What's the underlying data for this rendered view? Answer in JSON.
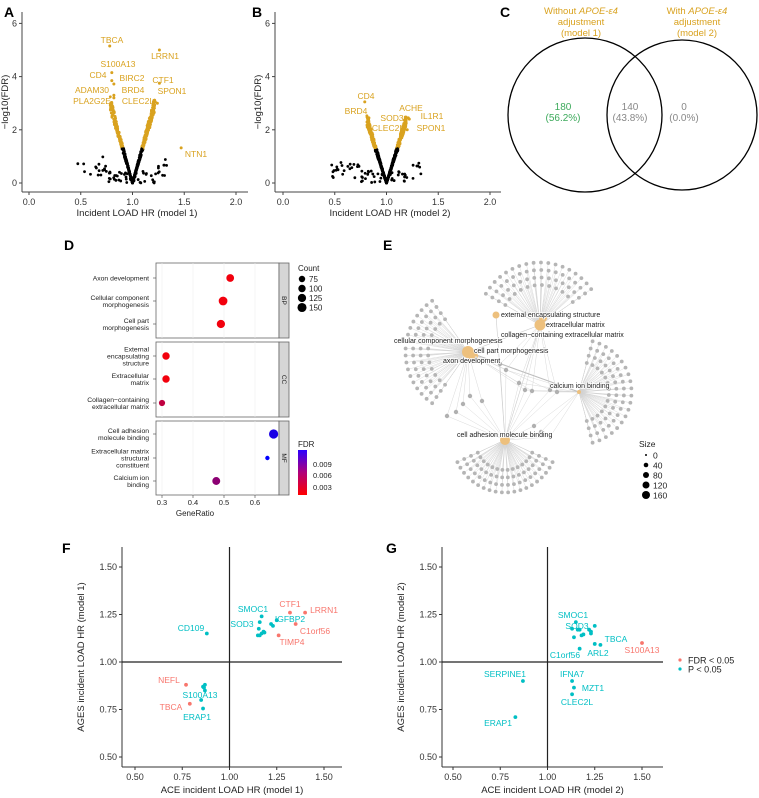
{
  "panels": {
    "a": "A",
    "b": "B",
    "c": "C",
    "d": "D",
    "e": "E",
    "f": "F",
    "g": "G"
  },
  "colors": {
    "significant": "#D9A21F",
    "nonsignificant": "#000000",
    "fdr": "#F8766D",
    "p": "#00BFC4",
    "venn_unique": "#3DAA5C",
    "venn_other": "#888888"
  },
  "chart_data": [
    {
      "id": "volcano_model1",
      "type": "scatter",
      "xlabel": "Incident LOAD HR (model 1)",
      "ylabel": "−log10(FDR)",
      "xlim": [
        0,
        2
      ],
      "ylim": [
        0,
        6
      ],
      "xticks": [
        "0.0",
        "0.5",
        "1.0",
        "1.5",
        "2.0"
      ],
      "yticks": [
        "0",
        "2",
        "4",
        "6"
      ],
      "labeled_points": [
        {
          "gene": "TBCA",
          "hr": 0.78,
          "y": 5.15
        },
        {
          "gene": "LRRN1",
          "hr": 1.26,
          "y": 5.0
        },
        {
          "gene": "S100A13",
          "hr": 0.8,
          "y": 4.15
        },
        {
          "gene": "CD4",
          "hr": 0.8,
          "y": 3.85
        },
        {
          "gene": "BIRC2",
          "hr": 0.82,
          "y": 3.72
        },
        {
          "gene": "CTF1",
          "hr": 1.26,
          "y": 3.75
        },
        {
          "gene": "ADAM30",
          "hr": 0.82,
          "y": 3.3
        },
        {
          "gene": "BRD4",
          "hr": 0.82,
          "y": 3.2
        },
        {
          "gene": "SPON1",
          "hr": 1.24,
          "y": 3.0
        },
        {
          "gene": "PLA2G2E",
          "hr": 0.81,
          "y": 2.85
        },
        {
          "gene": "CLEC2L",
          "hr": 1.22,
          "y": 3.05
        },
        {
          "gene": "NTN1",
          "hr": 1.47,
          "y": 1.32
        }
      ],
      "significance_threshold": 1.3
    },
    {
      "id": "volcano_model2",
      "type": "scatter",
      "xlabel": "Incident LOAD HR (model 2)",
      "ylabel": "−log10(FDR)",
      "xlim": [
        0,
        2
      ],
      "ylim": [
        0,
        6
      ],
      "xticks": [
        "0.0",
        "0.5",
        "1.0",
        "1.5",
        "2.0"
      ],
      "yticks": [
        "0",
        "2",
        "4",
        "6"
      ],
      "labeled_points": [
        {
          "gene": "CD4",
          "hr": 0.79,
          "y": 3.05
        },
        {
          "gene": "BRD4",
          "hr": 0.83,
          "y": 2.45
        },
        {
          "gene": "ACHE",
          "hr": 1.21,
          "y": 2.45
        },
        {
          "gene": "IL1R1",
          "hr": 1.22,
          "y": 2.4
        },
        {
          "gene": "SOD3",
          "hr": 1.19,
          "y": 2.25
        },
        {
          "gene": "CLEC2L",
          "hr": 1.15,
          "y": 2.0
        },
        {
          "gene": "SPON1",
          "hr": 1.2,
          "y": 2.0
        }
      ],
      "significance_threshold": 1.3
    },
    {
      "id": "venn",
      "type": "venn",
      "sets": [
        {
          "title_pre": "Without ",
          "title_it": "APOE-ε4",
          "title_l2": "adjustment",
          "title_l3": "(model 1)"
        },
        {
          "title_pre": "With ",
          "title_it": "APOE-ε4",
          "title_l2": "adjustment",
          "title_l3": "(model 2)"
        }
      ],
      "regions": [
        {
          "count": "180",
          "pct": "(56.2%)"
        },
        {
          "count": "140",
          "pct": "(43.8%)"
        },
        {
          "count": "0",
          "pct": "(0.0%)"
        }
      ]
    },
    {
      "id": "go_dotplot",
      "type": "scatter",
      "xlabel": "GeneRatio",
      "xticks": [
        "0.3",
        "0.4",
        "0.5",
        "0.6"
      ],
      "xlim": [
        0.28,
        0.7
      ],
      "facets": [
        "BP",
        "CC",
        "MF"
      ],
      "terms": [
        {
          "facet": "BP",
          "lines": [
            "Axon development"
          ],
          "ratio": 0.52,
          "count": 110,
          "fdr": 0.001
        },
        {
          "facet": "BP",
          "lines": [
            "Cellular component",
            "morphogenesis"
          ],
          "ratio": 0.497,
          "count": 140,
          "fdr": 0.001
        },
        {
          "facet": "BP",
          "lines": [
            "Cell part",
            "morphogenesis"
          ],
          "ratio": 0.49,
          "count": 125,
          "fdr": 0.001
        },
        {
          "facet": "CC",
          "lines": [
            "External",
            "encapsulating",
            "structure"
          ],
          "ratio": 0.313,
          "count": 100,
          "fdr": 0.001
        },
        {
          "facet": "CC",
          "lines": [
            "Extracellular",
            "matrix"
          ],
          "ratio": 0.313,
          "count": 100,
          "fdr": 0.001
        },
        {
          "facet": "CC",
          "lines": [
            "Collagen−containing",
            "extracellular matrix"
          ],
          "ratio": 0.3,
          "count": 70,
          "fdr": 0.003
        },
        {
          "facet": "MF",
          "lines": [
            "Cell adhesion",
            "molecule binding"
          ],
          "ratio": 0.66,
          "count": 155,
          "fdr": 0.0095
        },
        {
          "facet": "MF",
          "lines": [
            "Extracellular matrix",
            "structural",
            "constituent"
          ],
          "ratio": 0.64,
          "count": 35,
          "fdr": 0.0105
        },
        {
          "facet": "MF",
          "lines": [
            "Calcium ion",
            "binding"
          ],
          "ratio": 0.475,
          "count": 115,
          "fdr": 0.005
        }
      ],
      "count_legend": {
        "title": "Count",
        "values": [
          "75",
          "100",
          "125",
          "150"
        ]
      },
      "fdr_legend": {
        "title": "FDR",
        "values": [
          "0.009",
          "0.006",
          "0.003"
        ]
      }
    },
    {
      "id": "go_network",
      "type": "network",
      "terms": [
        "external encapsulating structure",
        "extracellular matrix",
        "collagen−containing extracellular matrix",
        "cellular component morphogenesis",
        "cell part morphogenesis",
        "axon development",
        "calcium ion binding",
        "cell adhesion molecule binding"
      ],
      "size_legend": {
        "title": "Size",
        "values": [
          "0",
          "40",
          "80",
          "120",
          "160"
        ]
      }
    },
    {
      "id": "replication_model1",
      "type": "scatter",
      "xlabel": "ACE incident LOAD HR (model 1)",
      "ylabel": "AGES incident LOAD HR  (model 1)",
      "xlim": [
        0.45,
        1.6
      ],
      "ylim": [
        0.45,
        1.6
      ],
      "xticks": [
        "0.50",
        "0.75",
        "1.00",
        "1.25",
        "1.50"
      ],
      "yticks": [
        "0.50",
        "0.75",
        "1.00",
        "1.25",
        "1.50"
      ],
      "points": [
        {
          "gene": "CTF1",
          "x": 1.32,
          "y": 1.26,
          "sig": "fdr"
        },
        {
          "gene": "LRRN1",
          "x": 1.4,
          "y": 1.26,
          "sig": "fdr"
        },
        {
          "gene": "C1orf56",
          "x": 1.35,
          "y": 1.2,
          "sig": "fdr"
        },
        {
          "gene": "TIMP4",
          "x": 1.26,
          "y": 1.14,
          "sig": "fdr"
        },
        {
          "gene": "NEFL",
          "x": 0.77,
          "y": 0.88,
          "sig": "fdr"
        },
        {
          "gene": "TBCA",
          "x": 0.79,
          "y": 0.78,
          "sig": "fdr"
        },
        {
          "gene": "CD109",
          "x": 0.88,
          "y": 1.15,
          "sig": "p"
        },
        {
          "gene": "SMOC1",
          "x": 1.17,
          "y": 1.24,
          "sig": "p"
        },
        {
          "gene": "SOD3",
          "x": 1.16,
          "y": 1.21,
          "sig": "p"
        },
        {
          "gene": "IGFBP2",
          "x": 1.25,
          "y": 1.22,
          "sig": "p"
        },
        {
          "gene": "",
          "x": 1.15,
          "y": 1.14,
          "sig": "p"
        },
        {
          "gene": "",
          "x": 1.16,
          "y": 1.14,
          "sig": "p"
        },
        {
          "gene": "",
          "x": 1.17,
          "y": 1.15,
          "sig": "p"
        },
        {
          "gene": "",
          "x": 1.18,
          "y": 1.16,
          "sig": "p"
        },
        {
          "gene": "",
          "x": 1.155,
          "y": 1.175,
          "sig": "p"
        },
        {
          "gene": "",
          "x": 1.23,
          "y": 1.19,
          "sig": "p"
        },
        {
          "gene": "",
          "x": 1.22,
          "y": 1.2,
          "sig": "p"
        },
        {
          "gene": "",
          "x": 1.185,
          "y": 1.155,
          "sig": "p"
        },
        {
          "gene": "S100A13",
          "x": 0.85,
          "y": 0.8,
          "sig": "p"
        },
        {
          "gene": "ERAP1",
          "x": 0.86,
          "y": 0.755,
          "sig": "p"
        },
        {
          "gene": "",
          "x": 0.86,
          "y": 0.87,
          "sig": "p"
        },
        {
          "gene": "",
          "x": 0.87,
          "y": 0.88,
          "sig": "p"
        },
        {
          "gene": "",
          "x": 0.865,
          "y": 0.865,
          "sig": "p"
        },
        {
          "gene": "",
          "x": 0.87,
          "y": 0.85,
          "sig": "p"
        }
      ]
    },
    {
      "id": "replication_model2",
      "type": "scatter",
      "xlabel": "ACE incident LOAD HR (model 2)",
      "ylabel": "AGES incident LOAD HR  (model 2)",
      "xlim": [
        0.45,
        1.6
      ],
      "ylim": [
        0.45,
        1.6
      ],
      "xticks": [
        "0.50",
        "0.75",
        "1.00",
        "1.25",
        "1.50"
      ],
      "yticks": [
        "0.50",
        "0.75",
        "1.00",
        "1.25",
        "1.50"
      ],
      "legend": [
        {
          "key": "fdr",
          "label": "FDR < 0.05"
        },
        {
          "key": "p",
          "label": "P < 0.05"
        }
      ],
      "points": [
        {
          "gene": "S100A13",
          "x": 1.5,
          "y": 1.1,
          "sig": "fdr"
        },
        {
          "gene": "SMOC1",
          "x": 1.15,
          "y": 1.21,
          "sig": "p"
        },
        {
          "gene": "SOD3",
          "x": 1.16,
          "y": 1.17,
          "sig": "p"
        },
        {
          "gene": "",
          "x": 1.13,
          "y": 1.175,
          "sig": "p"
        },
        {
          "gene": "",
          "x": 1.17,
          "y": 1.17,
          "sig": "p"
        },
        {
          "gene": "",
          "x": 1.22,
          "y": 1.17,
          "sig": "p"
        },
        {
          "gene": "",
          "x": 1.23,
          "y": 1.16,
          "sig": "p"
        },
        {
          "gene": "",
          "x": 1.25,
          "y": 1.19,
          "sig": "p"
        },
        {
          "gene": "",
          "x": 1.14,
          "y": 1.13,
          "sig": "p"
        },
        {
          "gene": "",
          "x": 1.18,
          "y": 1.14,
          "sig": "p"
        },
        {
          "gene": "",
          "x": 1.19,
          "y": 1.145,
          "sig": "p"
        },
        {
          "gene": "",
          "x": 1.23,
          "y": 1.15,
          "sig": "p"
        },
        {
          "gene": "TBCA",
          "x": 1.28,
          "y": 1.09,
          "sig": "p"
        },
        {
          "gene": "ARL2",
          "x": 1.25,
          "y": 1.095,
          "sig": "p"
        },
        {
          "gene": "C1orf56",
          "x": 1.17,
          "y": 1.07,
          "sig": "p"
        },
        {
          "gene": "IFNA7",
          "x": 1.13,
          "y": 0.9,
          "sig": "p"
        },
        {
          "gene": "MZT1",
          "x": 1.14,
          "y": 0.865,
          "sig": "p"
        },
        {
          "gene": "CLEC2L",
          "x": 1.13,
          "y": 0.83,
          "sig": "p"
        },
        {
          "gene": "SERPINE1",
          "x": 0.87,
          "y": 0.9,
          "sig": "p"
        },
        {
          "gene": "ERAP1",
          "x": 0.83,
          "y": 0.71,
          "sig": "p"
        }
      ]
    }
  ]
}
